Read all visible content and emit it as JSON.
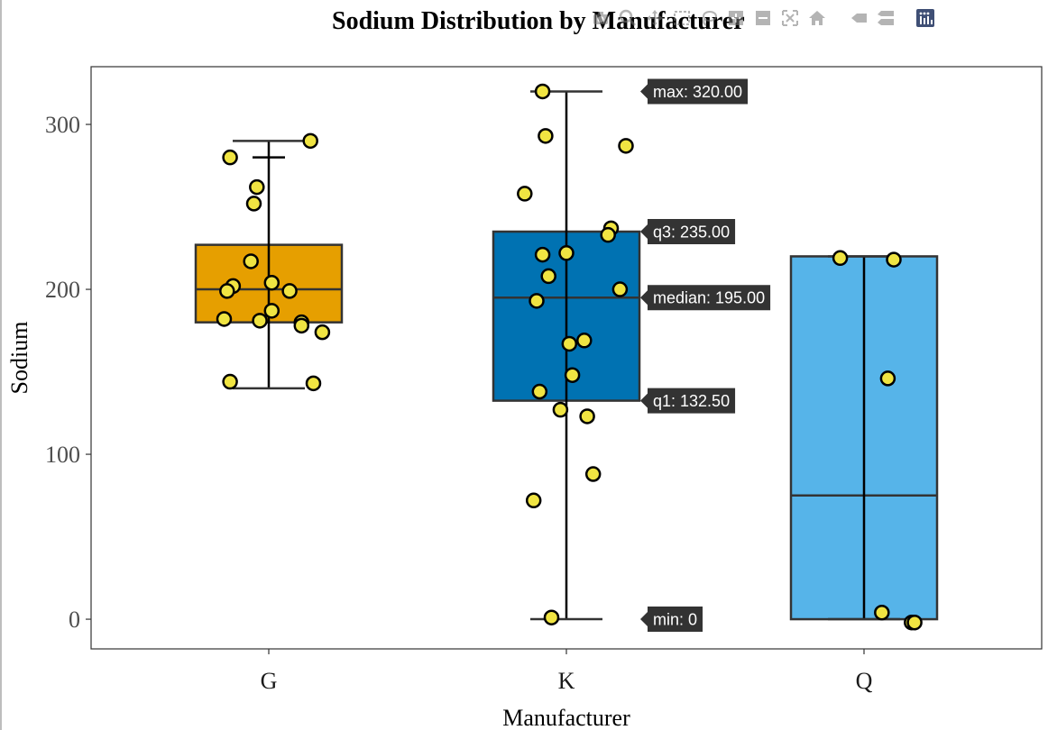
{
  "modebar": {
    "icons": [
      "camera-icon",
      "zoom-icon",
      "pan-icon",
      "box-select-icon",
      "lasso-icon",
      "zoom-in-icon",
      "zoom-out-icon",
      "autoscale-icon",
      "home-icon",
      "spike-icon",
      "compare-icon",
      "plotly-logo-icon"
    ]
  },
  "chart_data": {
    "type": "box",
    "title": "Sodium Distribution by Manufacturer",
    "xlabel": "Manufacturer",
    "ylabel": "Sodium",
    "categories": [
      "G",
      "K",
      "Q"
    ],
    "ylim": [
      -18,
      335
    ],
    "yticks": [
      0,
      100,
      200,
      300
    ],
    "grid": false,
    "colors": {
      "G": "#E69F00",
      "K": "#0072B2",
      "Q": "#56B4E9",
      "points": "#F0E442"
    },
    "boxes": [
      {
        "name": "G",
        "min": 140,
        "q1": 180,
        "median": 200,
        "q3": 227,
        "max": 290,
        "whisker_high": 280
      },
      {
        "name": "K",
        "min": 0,
        "q1": 132.5,
        "median": 195,
        "q3": 235,
        "max": 320
      },
      {
        "name": "Q",
        "min": 0,
        "q1": 0,
        "median": 75,
        "q3": 220,
        "max": 220
      }
    ],
    "points": {
      "G": [
        {
          "x": -0.13,
          "y": 280
        },
        {
          "x": 0.14,
          "y": 290
        },
        {
          "x": -0.04,
          "y": 262
        },
        {
          "x": -0.05,
          "y": 252
        },
        {
          "x": -0.06,
          "y": 217
        },
        {
          "x": -0.12,
          "y": 202
        },
        {
          "x": 0.01,
          "y": 204
        },
        {
          "x": -0.14,
          "y": 199
        },
        {
          "x": 0.07,
          "y": 199
        },
        {
          "x": 0.01,
          "y": 187
        },
        {
          "x": -0.15,
          "y": 182
        },
        {
          "x": -0.03,
          "y": 181
        },
        {
          "x": 0.11,
          "y": 180
        },
        {
          "x": 0.11,
          "y": 178
        },
        {
          "x": 0.18,
          "y": 174
        },
        {
          "x": -0.13,
          "y": 144
        },
        {
          "x": 0.15,
          "y": 143
        }
      ],
      "K": [
        {
          "x": -0.08,
          "y": 320
        },
        {
          "x": -0.07,
          "y": 293
        },
        {
          "x": 0.2,
          "y": 287
        },
        {
          "x": -0.14,
          "y": 258
        },
        {
          "x": 0.15,
          "y": 237
        },
        {
          "x": 0.14,
          "y": 233
        },
        {
          "x": -0.08,
          "y": 221
        },
        {
          "x": 0.0,
          "y": 222
        },
        {
          "x": -0.06,
          "y": 208
        },
        {
          "x": 0.18,
          "y": 200
        },
        {
          "x": -0.1,
          "y": 193
        },
        {
          "x": 0.06,
          "y": 169
        },
        {
          "x": 0.01,
          "y": 167
        },
        {
          "x": 0.02,
          "y": 148
        },
        {
          "x": -0.09,
          "y": 138
        },
        {
          "x": -0.02,
          "y": 127
        },
        {
          "x": 0.07,
          "y": 123
        },
        {
          "x": 0.09,
          "y": 88
        },
        {
          "x": -0.11,
          "y": 72
        },
        {
          "x": -0.05,
          "y": 1
        }
      ],
      "Q": [
        {
          "x": -0.08,
          "y": 219
        },
        {
          "x": 0.1,
          "y": 218
        },
        {
          "x": 0.08,
          "y": 146
        },
        {
          "x": 0.06,
          "y": 4
        },
        {
          "x": 0.16,
          "y": -2
        },
        {
          "x": 0.17,
          "y": -2
        }
      ]
    },
    "hover_labels": [
      {
        "label": "max: 320.00",
        "value": 320
      },
      {
        "label": "q3: 235.00",
        "value": 235
      },
      {
        "label": "median: 195.00",
        "value": 195
      },
      {
        "label": "q1: 132.50",
        "value": 132.5
      },
      {
        "label": "min: 0",
        "value": 0
      }
    ]
  }
}
